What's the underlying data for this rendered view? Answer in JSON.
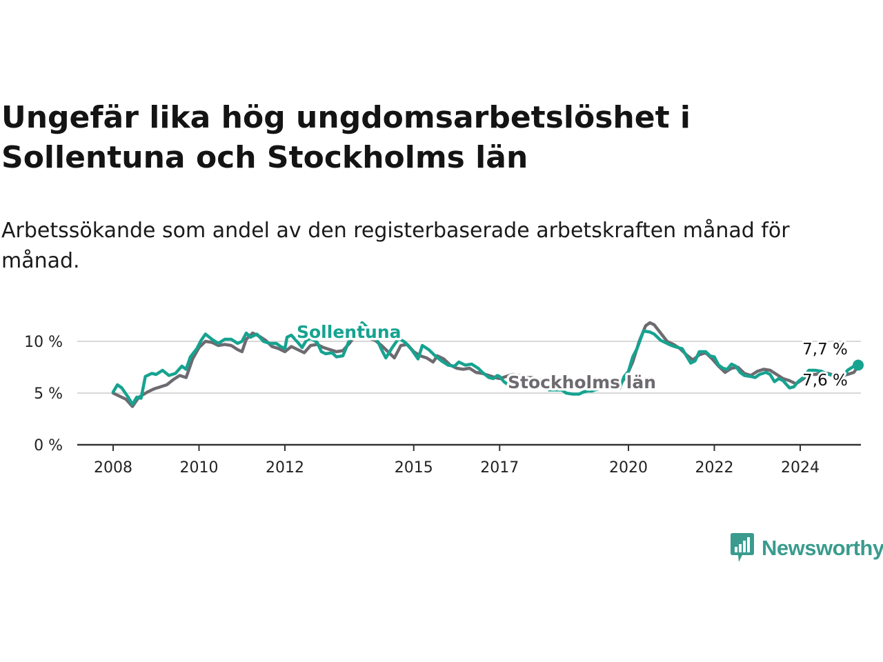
{
  "title": "Ungefär lika hög ungdomsarbetslöshet i Sollentuna och Stockholms län",
  "subtitle": "Arbetssökande som andel av den registerbaserade arbetskraften månad för månad.",
  "brand": {
    "name": "Newsworthy"
  },
  "colors": {
    "sollentuna": "#16a390",
    "stockholm": "#6d6a70",
    "grid": "#d8d8d8",
    "axis": "#333333"
  },
  "chart_data": {
    "type": "line",
    "title": "Ungefär lika hög ungdomsarbetslöshet i Sollentuna och Stockholms län",
    "xlabel": "",
    "ylabel": "",
    "ylim": [
      0,
      10
    ],
    "yticks": [
      0,
      5,
      10
    ],
    "ytick_labels": [
      "0 %",
      "5 %",
      "10 %"
    ],
    "xlim": [
      2008,
      2025.5
    ],
    "xticks": [
      2008,
      2010,
      2012,
      2015,
      2017,
      2020,
      2022,
      2024
    ],
    "xtick_labels": [
      "2008",
      "2010",
      "2012",
      "2015",
      "2017",
      "2020",
      "2022",
      "2024"
    ],
    "grid": true,
    "legend": "inline labels",
    "series": [
      {
        "name": "Sollentuna",
        "label": "Sollentuna",
        "color": "#16a390",
        "end_label": "7,7 %",
        "points": [
          [
            2008.0,
            5.1
          ],
          [
            2008.1,
            5.8
          ],
          [
            2008.2,
            5.5
          ],
          [
            2008.35,
            4.6
          ],
          [
            2008.45,
            3.9
          ],
          [
            2008.55,
            4.6
          ],
          [
            2008.65,
            4.5
          ],
          [
            2008.75,
            6.6
          ],
          [
            2008.9,
            6.9
          ],
          [
            2009.0,
            6.8
          ],
          [
            2009.15,
            7.2
          ],
          [
            2009.3,
            6.7
          ],
          [
            2009.45,
            6.9
          ],
          [
            2009.6,
            7.6
          ],
          [
            2009.7,
            7.3
          ],
          [
            2009.8,
            8.5
          ],
          [
            2009.95,
            9.3
          ],
          [
            2010.05,
            10.1
          ],
          [
            2010.15,
            10.7
          ],
          [
            2010.3,
            10.2
          ],
          [
            2010.45,
            9.8
          ],
          [
            2010.6,
            10.2
          ],
          [
            2010.75,
            10.2
          ],
          [
            2010.9,
            9.8
          ],
          [
            2011.0,
            10.0
          ],
          [
            2011.1,
            10.8
          ],
          [
            2011.2,
            10.4
          ],
          [
            2011.35,
            10.7
          ],
          [
            2011.5,
            10.0
          ],
          [
            2011.65,
            9.8
          ],
          [
            2011.8,
            9.8
          ],
          [
            2011.9,
            9.5
          ],
          [
            2012.0,
            9.3
          ],
          [
            2012.05,
            10.4
          ],
          [
            2012.15,
            10.6
          ],
          [
            2012.3,
            9.9
          ],
          [
            2012.4,
            9.4
          ],
          [
            2012.5,
            10.1
          ],
          [
            2012.6,
            10.3
          ],
          [
            2012.75,
            9.9
          ],
          [
            2012.85,
            9.0
          ],
          [
            2012.95,
            8.8
          ],
          [
            2013.1,
            8.9
          ],
          [
            2013.2,
            8.5
          ],
          [
            2013.35,
            8.6
          ],
          [
            2013.5,
            10.1
          ],
          [
            2013.65,
            11.0
          ],
          [
            2013.8,
            11.8
          ],
          [
            2013.95,
            11.2
          ],
          [
            2014.1,
            10.6
          ],
          [
            2014.25,
            9.2
          ],
          [
            2014.35,
            8.4
          ],
          [
            2014.5,
            9.4
          ],
          [
            2014.65,
            10.3
          ],
          [
            2014.8,
            9.9
          ],
          [
            2014.95,
            9.2
          ],
          [
            2015.1,
            8.3
          ],
          [
            2015.2,
            9.6
          ],
          [
            2015.35,
            9.2
          ],
          [
            2015.5,
            8.6
          ],
          [
            2015.65,
            8.1
          ],
          [
            2015.8,
            7.7
          ],
          [
            2015.95,
            7.6
          ],
          [
            2016.05,
            8.0
          ],
          [
            2016.2,
            7.7
          ],
          [
            2016.35,
            7.8
          ],
          [
            2016.5,
            7.4
          ],
          [
            2016.6,
            7.0
          ],
          [
            2016.75,
            6.5
          ],
          [
            2016.85,
            6.4
          ],
          [
            2016.95,
            6.7
          ],
          [
            2017.0,
            6.6
          ],
          [
            2017.1,
            6.1
          ],
          [
            2017.2,
            5.8
          ],
          [
            2017.3,
            5.6
          ],
          [
            2017.4,
            5.8
          ],
          [
            2017.55,
            6.0
          ],
          [
            2017.65,
            6.3
          ],
          [
            2017.8,
            6.2
          ],
          [
            2017.95,
            5.8
          ],
          [
            2018.05,
            5.7
          ],
          [
            2018.15,
            5.3
          ],
          [
            2018.3,
            5.3
          ],
          [
            2018.45,
            5.3
          ],
          [
            2018.55,
            5.0
          ],
          [
            2018.7,
            4.9
          ],
          [
            2018.85,
            4.9
          ],
          [
            2018.95,
            5.1
          ],
          [
            2019.05,
            5.2
          ],
          [
            2019.15,
            5.2
          ],
          [
            2019.3,
            5.4
          ],
          [
            2019.45,
            5.6
          ],
          [
            2019.55,
            5.7
          ],
          [
            2019.65,
            5.6
          ],
          [
            2019.8,
            5.5
          ],
          [
            2019.9,
            6.6
          ],
          [
            2020.0,
            7.1
          ],
          [
            2020.1,
            8.5
          ],
          [
            2020.2,
            9.3
          ],
          [
            2020.35,
            11.0
          ],
          [
            2020.5,
            10.9
          ],
          [
            2020.6,
            10.7
          ],
          [
            2020.75,
            10.1
          ],
          [
            2020.9,
            9.8
          ],
          [
            2021.0,
            9.6
          ],
          [
            2021.15,
            9.4
          ],
          [
            2021.25,
            9.3
          ],
          [
            2021.35,
            8.6
          ],
          [
            2021.45,
            7.9
          ],
          [
            2021.55,
            8.1
          ],
          [
            2021.65,
            9.0
          ],
          [
            2021.8,
            9.0
          ],
          [
            2021.9,
            8.6
          ],
          [
            2022.0,
            8.5
          ],
          [
            2022.1,
            7.7
          ],
          [
            2022.2,
            7.4
          ],
          [
            2022.3,
            7.3
          ],
          [
            2022.4,
            7.8
          ],
          [
            2022.5,
            7.6
          ],
          [
            2022.6,
            7.0
          ],
          [
            2022.7,
            6.7
          ],
          [
            2022.85,
            6.6
          ],
          [
            2022.95,
            6.5
          ],
          [
            2023.05,
            6.8
          ],
          [
            2023.2,
            7.0
          ],
          [
            2023.3,
            6.8
          ],
          [
            2023.4,
            6.1
          ],
          [
            2023.5,
            6.4
          ],
          [
            2023.6,
            6.2
          ],
          [
            2023.75,
            5.5
          ],
          [
            2023.85,
            5.6
          ],
          [
            2023.95,
            6.1
          ],
          [
            2024.1,
            6.6
          ],
          [
            2024.2,
            7.2
          ],
          [
            2024.35,
            7.2
          ],
          [
            2024.5,
            7.1
          ],
          [
            2024.6,
            6.9
          ],
          [
            2024.75,
            6.7
          ],
          [
            2024.85,
            6.7
          ],
          [
            2024.95,
            6.4
          ],
          [
            2025.0,
            6.5
          ],
          [
            2025.1,
            7.2
          ],
          [
            2025.25,
            7.6
          ],
          [
            2025.35,
            7.7
          ]
        ]
      },
      {
        "name": "Stockholms län",
        "label": "Stockholms län",
        "color": "#6d6a70",
        "end_label": "7,6 %",
        "points": [
          [
            2008.0,
            5.0
          ],
          [
            2008.15,
            4.7
          ],
          [
            2008.3,
            4.4
          ],
          [
            2008.45,
            3.7
          ],
          [
            2008.6,
            4.6
          ],
          [
            2008.8,
            5.1
          ],
          [
            2008.95,
            5.4
          ],
          [
            2009.1,
            5.6
          ],
          [
            2009.25,
            5.8
          ],
          [
            2009.4,
            6.3
          ],
          [
            2009.55,
            6.7
          ],
          [
            2009.7,
            6.5
          ],
          [
            2009.85,
            8.3
          ],
          [
            2010.0,
            9.4
          ],
          [
            2010.15,
            10.0
          ],
          [
            2010.3,
            9.9
          ],
          [
            2010.45,
            9.6
          ],
          [
            2010.6,
            9.7
          ],
          [
            2010.75,
            9.6
          ],
          [
            2010.9,
            9.2
          ],
          [
            2011.0,
            9.0
          ],
          [
            2011.1,
            10.2
          ],
          [
            2011.25,
            10.8
          ],
          [
            2011.4,
            10.5
          ],
          [
            2011.55,
            10.1
          ],
          [
            2011.7,
            9.5
          ],
          [
            2011.85,
            9.3
          ],
          [
            2012.0,
            9.0
          ],
          [
            2012.15,
            9.5
          ],
          [
            2012.3,
            9.2
          ],
          [
            2012.45,
            8.9
          ],
          [
            2012.6,
            9.6
          ],
          [
            2012.75,
            9.7
          ],
          [
            2012.9,
            9.4
          ],
          [
            2013.05,
            9.2
          ],
          [
            2013.2,
            9.0
          ],
          [
            2013.35,
            9.1
          ],
          [
            2013.5,
            9.8
          ],
          [
            2013.65,
            10.6
          ],
          [
            2013.8,
            10.7
          ],
          [
            2013.95,
            10.3
          ],
          [
            2014.1,
            10.1
          ],
          [
            2014.25,
            9.6
          ],
          [
            2014.4,
            9.0
          ],
          [
            2014.55,
            8.4
          ],
          [
            2014.7,
            9.6
          ],
          [
            2014.85,
            9.7
          ],
          [
            2015.0,
            9.0
          ],
          [
            2015.15,
            8.6
          ],
          [
            2015.3,
            8.4
          ],
          [
            2015.45,
            8.0
          ],
          [
            2015.55,
            8.6
          ],
          [
            2015.7,
            8.3
          ],
          [
            2015.85,
            7.7
          ],
          [
            2016.0,
            7.4
          ],
          [
            2016.15,
            7.3
          ],
          [
            2016.3,
            7.4
          ],
          [
            2016.45,
            7.0
          ],
          [
            2016.6,
            6.9
          ],
          [
            2016.75,
            6.7
          ],
          [
            2016.9,
            6.5
          ],
          [
            2017.0,
            6.4
          ],
          [
            2017.15,
            6.6
          ],
          [
            2017.3,
            6.8
          ],
          [
            2017.45,
            6.7
          ],
          [
            2017.6,
            6.5
          ],
          [
            2017.75,
            6.5
          ],
          [
            2017.9,
            6.3
          ],
          [
            2018.05,
            6.2
          ],
          [
            2018.2,
            6.0
          ],
          [
            2018.35,
            5.9
          ],
          [
            2018.5,
            5.8
          ],
          [
            2018.65,
            5.7
          ],
          [
            2018.8,
            5.8
          ],
          [
            2018.95,
            5.9
          ],
          [
            2019.1,
            5.8
          ],
          [
            2019.25,
            5.8
          ],
          [
            2019.4,
            5.9
          ],
          [
            2019.55,
            5.9
          ],
          [
            2019.7,
            6.0
          ],
          [
            2019.85,
            6.1
          ],
          [
            2019.95,
            6.6
          ],
          [
            2020.1,
            8.0
          ],
          [
            2020.25,
            10.0
          ],
          [
            2020.4,
            11.5
          ],
          [
            2020.5,
            11.8
          ],
          [
            2020.6,
            11.6
          ],
          [
            2020.75,
            10.8
          ],
          [
            2020.9,
            10.0
          ],
          [
            2021.05,
            9.7
          ],
          [
            2021.2,
            9.3
          ],
          [
            2021.35,
            8.7
          ],
          [
            2021.5,
            8.2
          ],
          [
            2021.65,
            8.7
          ],
          [
            2021.8,
            8.9
          ],
          [
            2021.95,
            8.3
          ],
          [
            2022.1,
            7.6
          ],
          [
            2022.25,
            7.0
          ],
          [
            2022.4,
            7.4
          ],
          [
            2022.55,
            7.5
          ],
          [
            2022.7,
            6.9
          ],
          [
            2022.85,
            6.7
          ],
          [
            2023.0,
            7.1
          ],
          [
            2023.15,
            7.3
          ],
          [
            2023.3,
            7.2
          ],
          [
            2023.45,
            6.8
          ],
          [
            2023.6,
            6.4
          ],
          [
            2023.75,
            6.2
          ],
          [
            2023.9,
            5.9
          ],
          [
            2024.05,
            6.3
          ],
          [
            2024.2,
            6.8
          ],
          [
            2024.35,
            6.8
          ],
          [
            2024.5,
            6.9
          ],
          [
            2024.65,
            6.9
          ],
          [
            2024.8,
            6.7
          ],
          [
            2024.95,
            6.7
          ],
          [
            2025.1,
            6.8
          ],
          [
            2025.25,
            7.0
          ],
          [
            2025.35,
            7.6
          ]
        ]
      }
    ]
  }
}
